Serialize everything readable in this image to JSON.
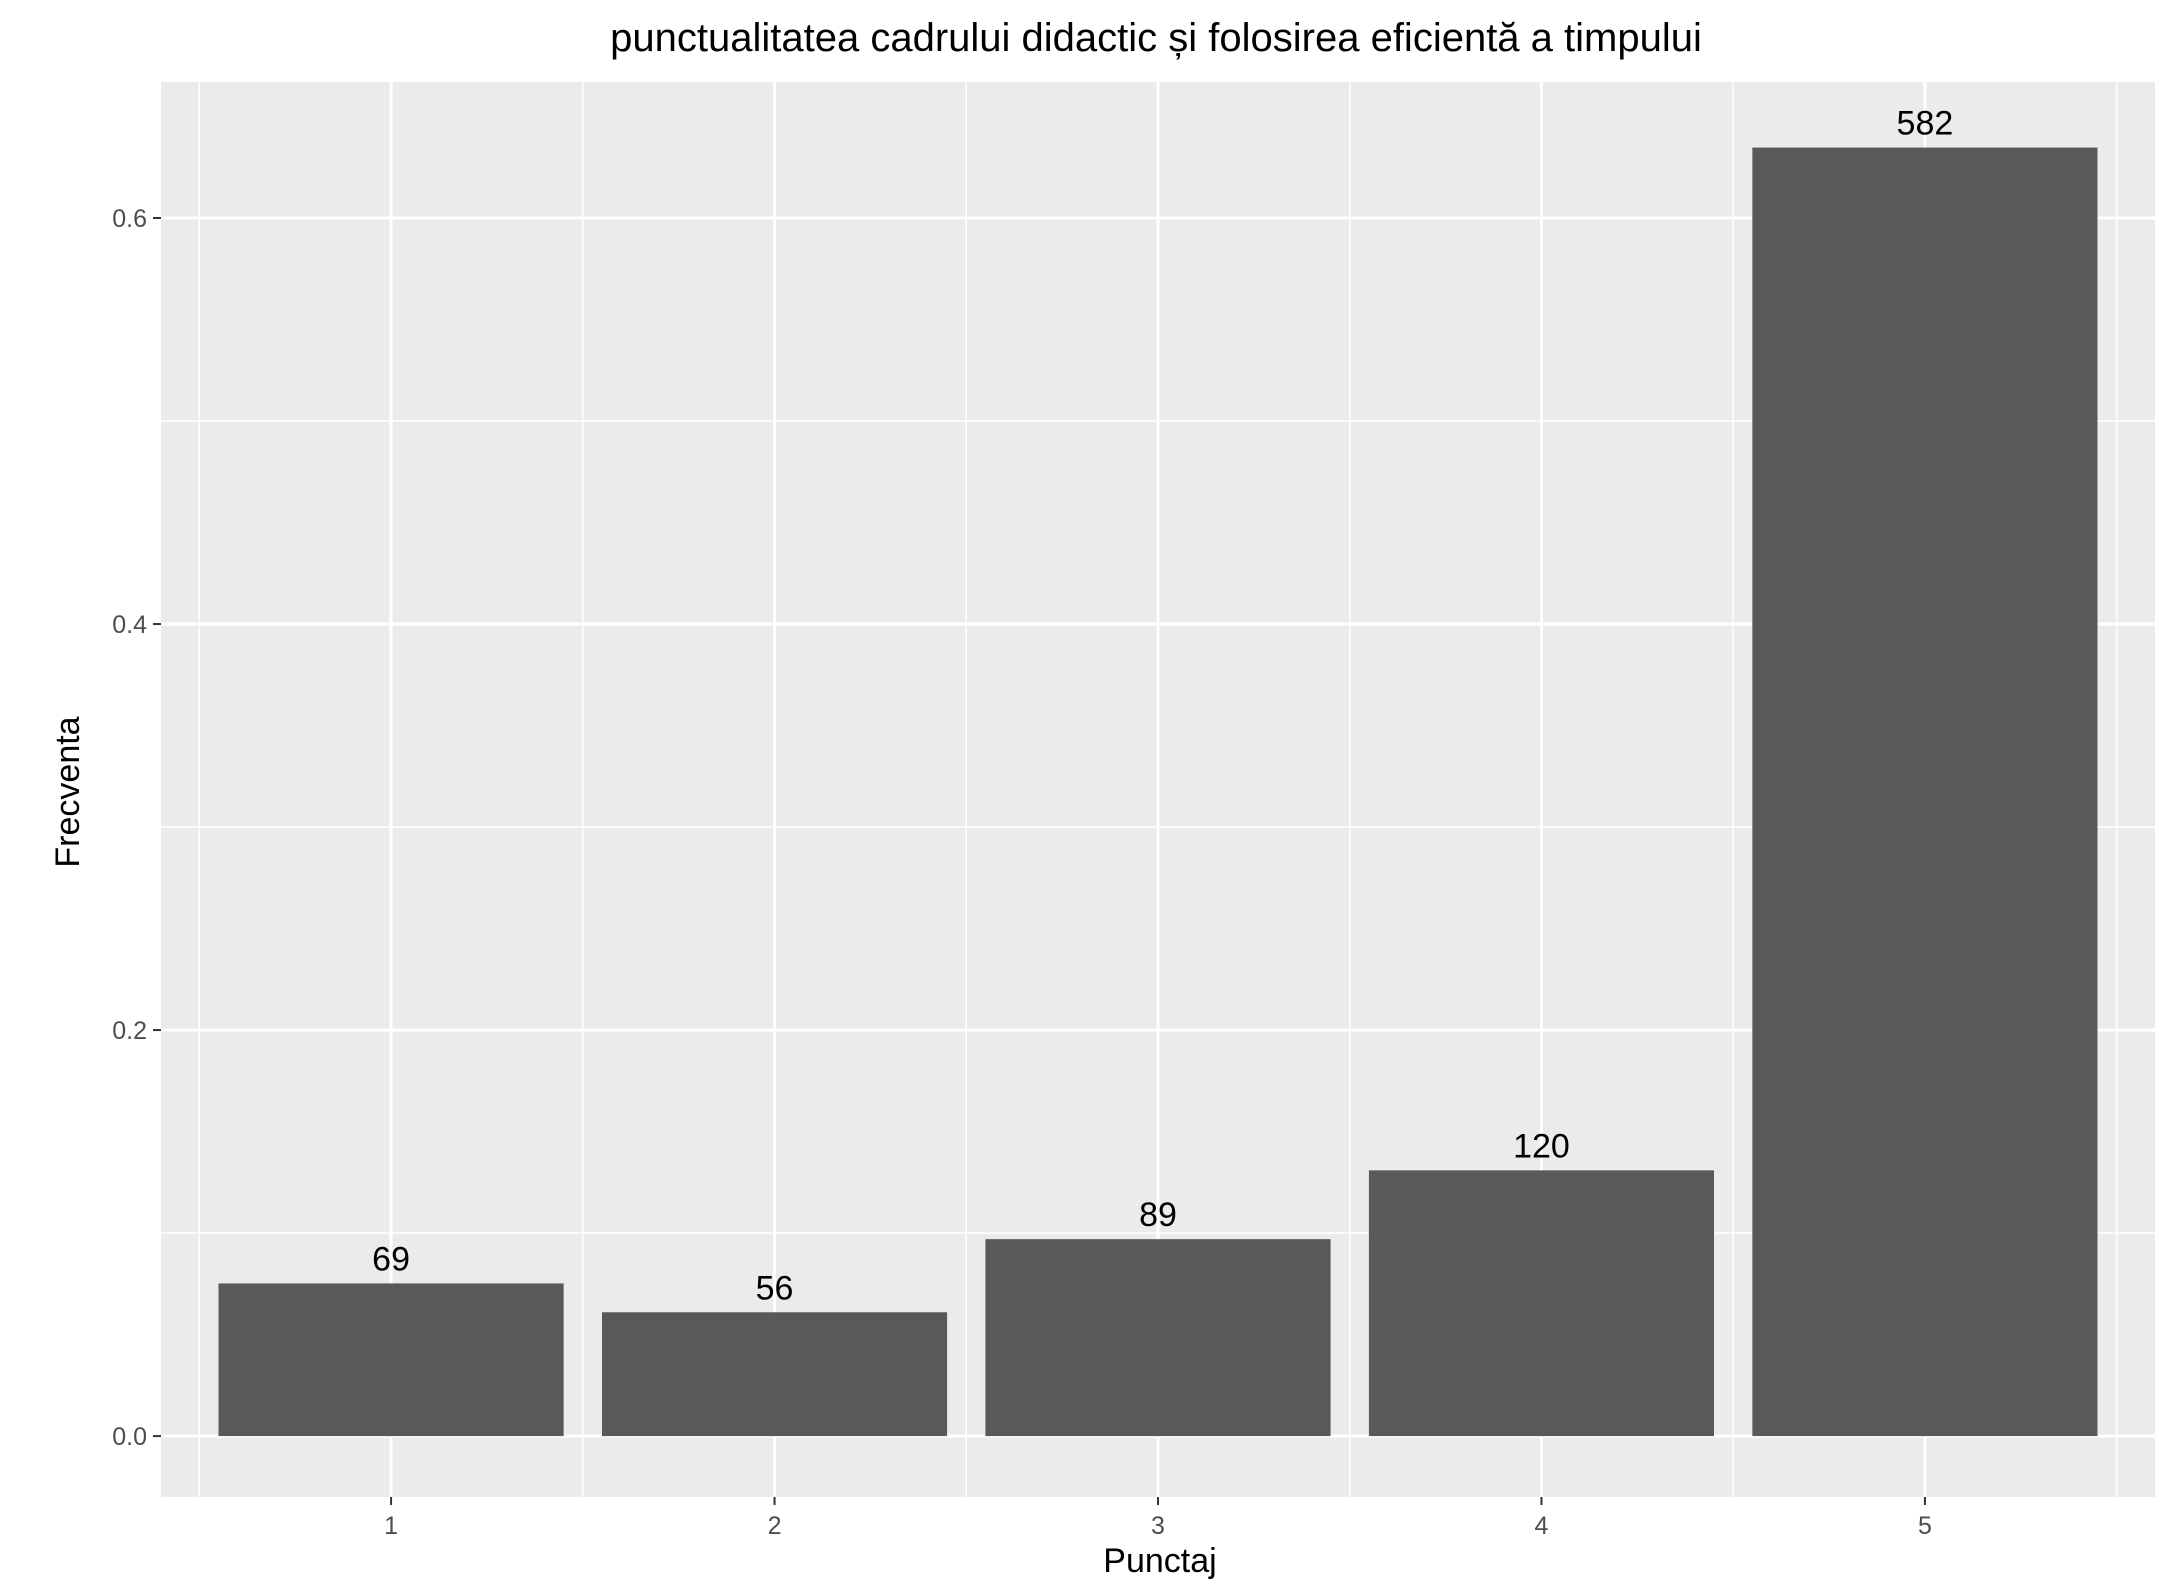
{
  "chart_data": {
    "type": "bar",
    "title": "punctualitatea cadrului didactic și folosirea eficientă a timpului",
    "xlabel": "Punctaj",
    "ylabel": "Frecventa",
    "categories": [
      "1",
      "2",
      "3",
      "4",
      "5"
    ],
    "values": [
      0.0752,
      0.061,
      0.097,
      0.1309,
      0.6347
    ],
    "labels": [
      "69",
      "56",
      "89",
      "120",
      "582"
    ],
    "ylim": [
      -0.03,
      0.667
    ],
    "yticks": [
      0.0,
      0.2,
      0.4,
      0.6
    ],
    "ytick_labels": [
      "0.0",
      "0.2",
      "0.4",
      "0.6"
    ],
    "grid": true,
    "colors": {
      "panel": "#ebebeb",
      "bar": "#595959",
      "grid": "#ffffff"
    }
  }
}
